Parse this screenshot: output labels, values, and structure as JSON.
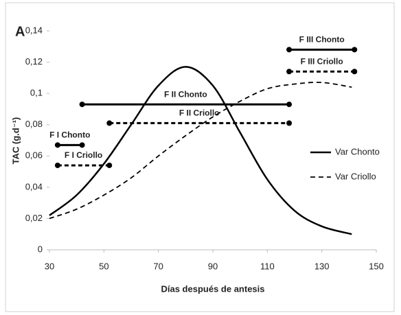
{
  "chart_data": {
    "type": "line",
    "panel_label": "A",
    "x_label": "Días después de antesis",
    "y_label": "TAC (g.d⁻¹)",
    "xlim": [
      30,
      150
    ],
    "xticks": [
      30,
      50,
      70,
      90,
      110,
      130,
      150
    ],
    "ylim": [
      0,
      0.14
    ],
    "yticks": [
      {
        "value": 0,
        "label": "0"
      },
      {
        "value": 0.02,
        "label": "0,02"
      },
      {
        "value": 0.04,
        "label": "0,04"
      },
      {
        "value": 0.06,
        "label": "0,06"
      },
      {
        "value": 0.08,
        "label": "0,08"
      },
      {
        "value": 0.1,
        "label": "0,1"
      },
      {
        "value": 0.12,
        "label": "0,12"
      },
      {
        "value": 0.14,
        "label": "0,14"
      }
    ],
    "x": [
      30,
      40,
      50,
      60,
      70,
      80,
      90,
      100,
      110,
      120,
      130,
      141
    ],
    "series": [
      {
        "name": "Var Chonto",
        "color": "#000000",
        "dashed": false,
        "values": [
          0.022,
          0.035,
          0.055,
          0.08,
          0.105,
          0.117,
          0.105,
          0.075,
          0.045,
          0.025,
          0.015,
          0.01
        ]
      },
      {
        "name": "Var Criollo",
        "color": "#000000",
        "dashed": true,
        "values": [
          0.02,
          0.026,
          0.035,
          0.046,
          0.06,
          0.073,
          0.085,
          0.095,
          0.103,
          0.106,
          0.107,
          0.104
        ]
      }
    ],
    "segments": [
      {
        "label": "F I Chonto",
        "y": 0.067,
        "x": [
          33,
          42
        ],
        "dashed": false
      },
      {
        "label": "F I Criollo",
        "y": 0.054,
        "x": [
          33,
          52
        ],
        "dashed": true
      },
      {
        "label": "F II Chonto",
        "y": 0.093,
        "x": [
          42,
          118
        ],
        "dashed": false
      },
      {
        "label": "F II Criollo",
        "y": 0.081,
        "x": [
          52,
          118
        ],
        "dashed": true
      },
      {
        "label": "F III Chonto",
        "y": 0.128,
        "x": [
          118,
          142
        ],
        "dashed": false
      },
      {
        "label": "F III Criollo",
        "y": 0.114,
        "x": [
          118,
          142
        ],
        "dashed": true
      }
    ],
    "legend": "right"
  }
}
